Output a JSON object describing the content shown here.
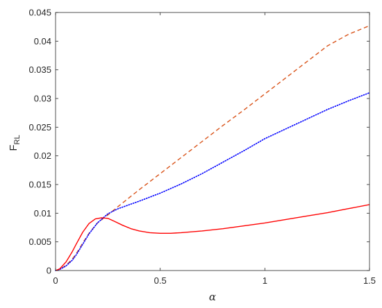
{
  "chart_data": {
    "type": "line",
    "title": "",
    "xlabel": "α",
    "ylabel_main": "F",
    "ylabel_sub": "RL",
    "xlim": [
      0,
      1.5
    ],
    "ylim": [
      0,
      0.045
    ],
    "xticks": [
      0,
      0.5,
      1,
      1.5
    ],
    "xtick_labels": [
      "0",
      "0.5",
      "1",
      "1.5"
    ],
    "yticks": [
      0,
      0.005,
      0.01,
      0.015,
      0.02,
      0.025,
      0.03,
      0.035,
      0.04,
      0.045
    ],
    "ytick_labels": [
      "0",
      "0.005",
      "0.01",
      "0.015",
      "0.02",
      "0.025",
      "0.03",
      "0.035",
      "0.04",
      "0.045"
    ],
    "grid": false,
    "legend": "none",
    "series": [
      {
        "style": "dashed",
        "color": "#d95319",
        "x": [
          0,
          0.02,
          0.05,
          0.08,
          0.1,
          0.13,
          0.16,
          0.2,
          0.25,
          0.3,
          0.4,
          0.5,
          0.6,
          0.7,
          0.8,
          0.9,
          1.0,
          1.1,
          1.2,
          1.3,
          1.4,
          1.5
        ],
        "y": [
          0,
          0.0002,
          0.0009,
          0.002,
          0.003,
          0.0048,
          0.0065,
          0.0083,
          0.0097,
          0.0112,
          0.0141,
          0.0169,
          0.0197,
          0.0225,
          0.0253,
          0.028,
          0.0308,
          0.0336,
          0.0364,
          0.0392,
          0.0412,
          0.0427
        ]
      },
      {
        "style": "dotted",
        "color": "#0000ff",
        "x": [
          0,
          0.02,
          0.05,
          0.08,
          0.1,
          0.13,
          0.16,
          0.2,
          0.25,
          0.3,
          0.4,
          0.5,
          0.6,
          0.7,
          0.8,
          0.9,
          1.0,
          1.1,
          1.2,
          1.3,
          1.4,
          1.5
        ],
        "y": [
          0,
          0.0002,
          0.0008,
          0.0018,
          0.0028,
          0.0046,
          0.0064,
          0.0083,
          0.0099,
          0.0108,
          0.0121,
          0.0135,
          0.0151,
          0.0169,
          0.0189,
          0.0209,
          0.023,
          0.0247,
          0.0264,
          0.0281,
          0.0296,
          0.031
        ]
      },
      {
        "style": "solid",
        "color": "#ff0000",
        "x": [
          0,
          0.02,
          0.05,
          0.08,
          0.1,
          0.13,
          0.16,
          0.19,
          0.22,
          0.25,
          0.28,
          0.32,
          0.36,
          0.4,
          0.45,
          0.5,
          0.55,
          0.6,
          0.7,
          0.8,
          0.9,
          1.0,
          1.1,
          1.2,
          1.3,
          1.4,
          1.5
        ],
        "y": [
          0,
          0.0003,
          0.0015,
          0.0033,
          0.0047,
          0.0067,
          0.0082,
          0.009,
          0.0092,
          0.0091,
          0.0086,
          0.0079,
          0.0073,
          0.0069,
          0.0066,
          0.0065,
          0.0065,
          0.0066,
          0.0069,
          0.0073,
          0.0078,
          0.0083,
          0.0089,
          0.0095,
          0.0101,
          0.0108,
          0.0115
        ]
      }
    ]
  }
}
